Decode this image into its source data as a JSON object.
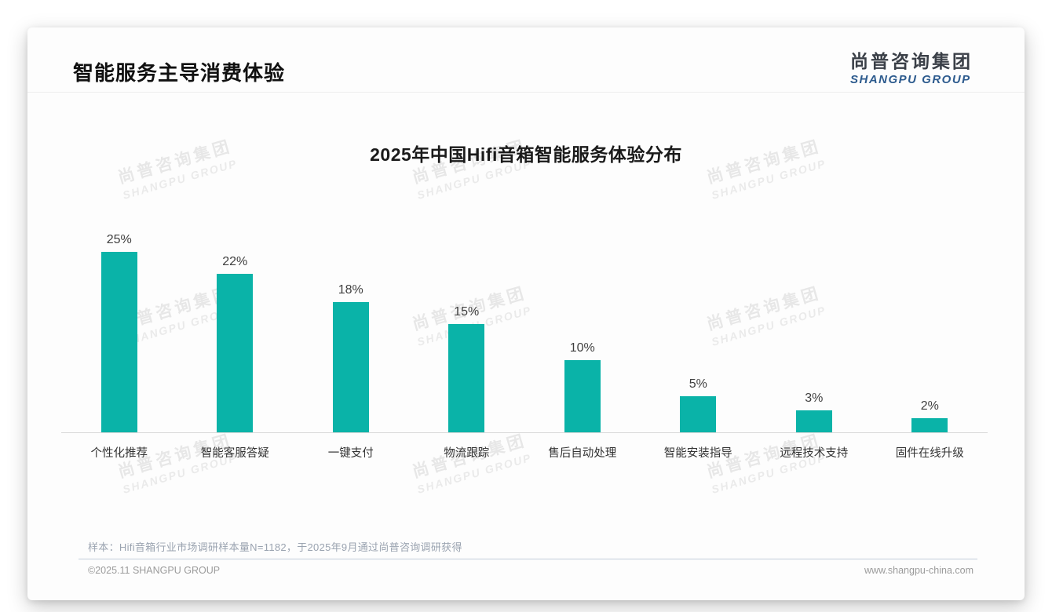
{
  "header": {
    "title": "智能服务主导消费体验",
    "logo": {
      "cn": "尚普咨询集团",
      "en": "SHANGPU GROUP"
    }
  },
  "watermark": {
    "cn": "尚普咨询集团",
    "en": "SHANGPU GROUP"
  },
  "chart_data": {
    "type": "bar",
    "title": "2025年中国Hifi音箱智能服务体验分布",
    "categories": [
      "个性化推荐",
      "智能客服答疑",
      "一键支付",
      "物流跟踪",
      "售后自动处理",
      "智能安装指导",
      "远程技术支持",
      "固件在线升级"
    ],
    "values": [
      25,
      22,
      18,
      15,
      10,
      5,
      3,
      2
    ],
    "value_labels": [
      "25%",
      "22%",
      "18%",
      "15%",
      "10%",
      "5%",
      "3%",
      "2%"
    ],
    "unit": "%",
    "bar_color": "#0ab3a8",
    "ylim": [
      0,
      27
    ],
    "grid": false,
    "legend": false,
    "xlabel": "",
    "ylabel": ""
  },
  "footnote": "样本：Hifi音箱行业市场调研样本量N=1182，于2025年9月通过尚普咨询调研获得",
  "footer": {
    "left": "©2025.11 SHANGPU GROUP",
    "right": "www.shangpu-china.com"
  },
  "colors": {
    "bar": "#0ab3a8",
    "logo_blue": "#2d5b8e",
    "axis_line": "#d8d8d8"
  }
}
